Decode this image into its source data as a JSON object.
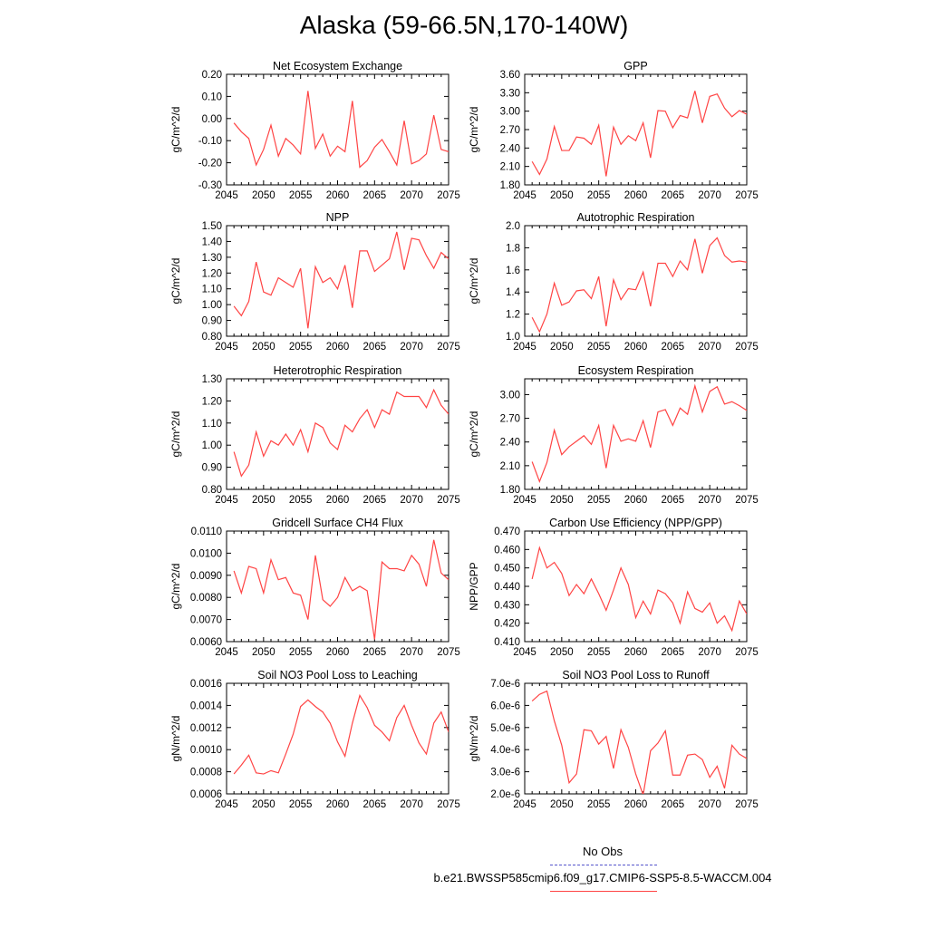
{
  "title": "Alaska (59-66.5N,170-140W)",
  "legend": {
    "obs_label": "No Obs",
    "obs_color": "#5555cc",
    "model_label": "b.e21.BWSSP585cmip6.f09_g17.CMIP6-SSP5-8.5-WACCM.004",
    "model_color": "#ff4444"
  },
  "chart_data": [
    {
      "type": "line",
      "title": "Net Ecosystem Exchange",
      "ylabel": "gC/m^2/d",
      "xlim": [
        2045,
        2075
      ],
      "ylim": [
        -0.3,
        0.2
      ],
      "xticks": [
        "2045",
        "2050",
        "2055",
        "2060",
        "2065",
        "2070",
        "2075"
      ],
      "yticks": [
        "-0.30",
        "-0.20",
        "-0.10",
        "0.00",
        "0.10",
        "0.20"
      ],
      "x": [
        2046,
        2047,
        2048,
        2049,
        2050,
        2051,
        2052,
        2053,
        2054,
        2055,
        2056,
        2057,
        2058,
        2059,
        2060,
        2061,
        2062,
        2063,
        2064,
        2065,
        2066,
        2067,
        2068,
        2069,
        2070,
        2071,
        2072,
        2073,
        2074,
        2075
      ],
      "values": [
        -0.02,
        -0.06,
        -0.09,
        -0.21,
        -0.14,
        -0.03,
        -0.17,
        -0.09,
        -0.12,
        -0.16,
        0.125,
        -0.135,
        -0.07,
        -0.17,
        -0.125,
        -0.15,
        0.08,
        -0.22,
        -0.19,
        -0.13,
        -0.095,
        -0.15,
        -0.21,
        -0.01,
        -0.205,
        -0.19,
        -0.16,
        0.015,
        -0.14,
        -0.15
      ]
    },
    {
      "type": "line",
      "title": "GPP",
      "ylabel": "gC/m^2/d",
      "xlim": [
        2045,
        2075
      ],
      "ylim": [
        1.8,
        3.6
      ],
      "xticks": [
        "2045",
        "2050",
        "2055",
        "2060",
        "2065",
        "2070",
        "2075"
      ],
      "yticks": [
        "1.80",
        "2.10",
        "2.40",
        "2.70",
        "3.00",
        "3.30",
        "3.60"
      ],
      "x": [
        2046,
        2047,
        2048,
        2049,
        2050,
        2051,
        2052,
        2053,
        2054,
        2055,
        2056,
        2057,
        2058,
        2059,
        2060,
        2061,
        2062,
        2063,
        2064,
        2065,
        2066,
        2067,
        2068,
        2069,
        2070,
        2071,
        2072,
        2073,
        2074,
        2075
      ],
      "values": [
        2.18,
        1.97,
        2.22,
        2.75,
        2.36,
        2.36,
        2.58,
        2.56,
        2.46,
        2.77,
        1.94,
        2.74,
        2.46,
        2.6,
        2.52,
        2.81,
        2.24,
        3.01,
        3.0,
        2.73,
        2.93,
        2.89,
        3.33,
        2.81,
        3.24,
        3.28,
        3.05,
        2.91,
        3.01,
        2.95
      ]
    },
    {
      "type": "line",
      "title": "NPP",
      "ylabel": "gC/m^2/d",
      "xlim": [
        2045,
        2075
      ],
      "ylim": [
        0.8,
        1.5
      ],
      "xticks": [
        "2045",
        "2050",
        "2055",
        "2060",
        "2065",
        "2070",
        "2075"
      ],
      "yticks": [
        "0.80",
        "0.90",
        "1.00",
        "1.10",
        "1.20",
        "1.30",
        "1.40",
        "1.50"
      ],
      "x": [
        2046,
        2047,
        2048,
        2049,
        2050,
        2051,
        2052,
        2053,
        2054,
        2055,
        2056,
        2057,
        2058,
        2059,
        2060,
        2061,
        2062,
        2063,
        2064,
        2065,
        2066,
        2067,
        2068,
        2069,
        2070,
        2071,
        2072,
        2073,
        2074,
        2075
      ],
      "values": [
        0.99,
        0.93,
        1.02,
        1.27,
        1.08,
        1.06,
        1.17,
        1.14,
        1.11,
        1.23,
        0.85,
        1.24,
        1.14,
        1.17,
        1.1,
        1.25,
        0.98,
        1.34,
        1.34,
        1.21,
        1.25,
        1.29,
        1.46,
        1.22,
        1.42,
        1.41,
        1.31,
        1.23,
        1.33,
        1.29
      ]
    },
    {
      "type": "line",
      "title": "Autotrophic Respiration",
      "ylabel": "gC/m^2/d",
      "xlim": [
        2045,
        2075
      ],
      "ylim": [
        1.0,
        2.0
      ],
      "xticks": [
        "2045",
        "2050",
        "2055",
        "2060",
        "2065",
        "2070",
        "2075"
      ],
      "yticks": [
        "1.0",
        "1.2",
        "1.4",
        "1.6",
        "1.8",
        "2.0"
      ],
      "x": [
        2046,
        2047,
        2048,
        2049,
        2050,
        2051,
        2052,
        2053,
        2054,
        2055,
        2056,
        2057,
        2058,
        2059,
        2060,
        2061,
        2062,
        2063,
        2064,
        2065,
        2066,
        2067,
        2068,
        2069,
        2070,
        2071,
        2072,
        2073,
        2074,
        2075
      ],
      "values": [
        1.17,
        1.04,
        1.2,
        1.48,
        1.28,
        1.31,
        1.41,
        1.42,
        1.34,
        1.54,
        1.09,
        1.51,
        1.33,
        1.43,
        1.42,
        1.58,
        1.27,
        1.66,
        1.66,
        1.54,
        1.68,
        1.6,
        1.88,
        1.57,
        1.82,
        1.89,
        1.73,
        1.67,
        1.68,
        1.67
      ]
    },
    {
      "type": "line",
      "title": "Heterotrophic Respiration",
      "ylabel": "gC/m^2/d",
      "xlim": [
        2045,
        2075
      ],
      "ylim": [
        0.8,
        1.3
      ],
      "xticks": [
        "2045",
        "2050",
        "2055",
        "2060",
        "2065",
        "2070",
        "2075"
      ],
      "yticks": [
        "0.80",
        "0.90",
        "1.00",
        "1.10",
        "1.20",
        "1.30"
      ],
      "x": [
        2046,
        2047,
        2048,
        2049,
        2050,
        2051,
        2052,
        2053,
        2054,
        2055,
        2056,
        2057,
        2058,
        2059,
        2060,
        2061,
        2062,
        2063,
        2064,
        2065,
        2066,
        2067,
        2068,
        2069,
        2070,
        2071,
        2072,
        2073,
        2074,
        2075
      ],
      "values": [
        0.97,
        0.86,
        0.91,
        1.06,
        0.95,
        1.02,
        1.0,
        1.05,
        1.0,
        1.07,
        0.97,
        1.1,
        1.08,
        1.01,
        0.98,
        1.09,
        1.06,
        1.12,
        1.16,
        1.08,
        1.16,
        1.14,
        1.24,
        1.22,
        1.22,
        1.22,
        1.17,
        1.25,
        1.18,
        1.14
      ]
    },
    {
      "type": "line",
      "title": "Ecosystem Respiration",
      "ylabel": "gC/m^2/d",
      "xlim": [
        2045,
        2075
      ],
      "ylim": [
        1.8,
        3.2
      ],
      "xticks": [
        "2045",
        "2050",
        "2055",
        "2060",
        "2065",
        "2070",
        "2075"
      ],
      "yticks": [
        "1.80",
        "2.10",
        "2.40",
        "2.70",
        "3.00"
      ],
      "x": [
        2046,
        2047,
        2048,
        2049,
        2050,
        2051,
        2052,
        2053,
        2054,
        2055,
        2056,
        2057,
        2058,
        2059,
        2060,
        2061,
        2062,
        2063,
        2064,
        2065,
        2066,
        2067,
        2068,
        2069,
        2070,
        2071,
        2072,
        2073,
        2074,
        2075
      ],
      "values": [
        2.15,
        1.9,
        2.14,
        2.55,
        2.24,
        2.34,
        2.41,
        2.48,
        2.37,
        2.61,
        2.07,
        2.61,
        2.41,
        2.44,
        2.41,
        2.67,
        2.33,
        2.78,
        2.81,
        2.61,
        2.83,
        2.75,
        3.11,
        2.78,
        3.04,
        3.1,
        2.88,
        2.91,
        2.86,
        2.8
      ]
    },
    {
      "type": "line",
      "title": "Gridcell Surface CH4 Flux",
      "ylabel": "gC/m^2/d",
      "xlim": [
        2045,
        2075
      ],
      "ylim": [
        0.006,
        0.011
      ],
      "xticks": [
        "2045",
        "2050",
        "2055",
        "2060",
        "2065",
        "2070",
        "2075"
      ],
      "yticks": [
        "0.0060",
        "0.0070",
        "0.0080",
        "0.0090",
        "0.0100",
        "0.0110"
      ],
      "x": [
        2046,
        2047,
        2048,
        2049,
        2050,
        2051,
        2052,
        2053,
        2054,
        2055,
        2056,
        2057,
        2058,
        2059,
        2060,
        2061,
        2062,
        2063,
        2064,
        2065,
        2066,
        2067,
        2068,
        2069,
        2070,
        2071,
        2072,
        2073,
        2074,
        2075
      ],
      "values": [
        0.0092,
        0.0082,
        0.0094,
        0.0093,
        0.0082,
        0.0097,
        0.0088,
        0.0089,
        0.0082,
        0.0081,
        0.007,
        0.0099,
        0.0079,
        0.0076,
        0.008,
        0.0089,
        0.0083,
        0.0085,
        0.0083,
        0.0061,
        0.0096,
        0.0093,
        0.0093,
        0.0092,
        0.0099,
        0.0095,
        0.0085,
        0.0106,
        0.0091,
        0.0088
      ]
    },
    {
      "type": "line",
      "title": "Carbon Use Efficiency (NPP/GPP)",
      "ylabel": "NPP/GPP",
      "xlim": [
        2045,
        2075
      ],
      "ylim": [
        0.41,
        0.47
      ],
      "xticks": [
        "2045",
        "2050",
        "2055",
        "2060",
        "2065",
        "2070",
        "2075"
      ],
      "yticks": [
        "0.410",
        "0.420",
        "0.430",
        "0.440",
        "0.450",
        "0.460",
        "0.470"
      ],
      "x": [
        2046,
        2047,
        2048,
        2049,
        2050,
        2051,
        2052,
        2053,
        2054,
        2055,
        2056,
        2057,
        2058,
        2059,
        2060,
        2061,
        2062,
        2063,
        2064,
        2065,
        2066,
        2067,
        2068,
        2069,
        2070,
        2071,
        2072,
        2073,
        2074,
        2075
      ],
      "values": [
        0.444,
        0.461,
        0.45,
        0.453,
        0.447,
        0.435,
        0.441,
        0.436,
        0.444,
        0.436,
        0.427,
        0.438,
        0.45,
        0.441,
        0.423,
        0.432,
        0.425,
        0.438,
        0.436,
        0.431,
        0.42,
        0.437,
        0.428,
        0.426,
        0.431,
        0.42,
        0.424,
        0.416,
        0.432,
        0.425
      ]
    },
    {
      "type": "line",
      "title": "Soil NO3 Pool Loss to Leaching",
      "ylabel": "gN/m^2/d",
      "xlim": [
        2045,
        2075
      ],
      "ylim": [
        0.0006,
        0.0016
      ],
      "xticks": [
        "2045",
        "2050",
        "2055",
        "2060",
        "2065",
        "2070",
        "2075"
      ],
      "yticks": [
        "0.0006",
        "0.0008",
        "0.0010",
        "0.0012",
        "0.0014",
        "0.0016"
      ],
      "x": [
        2046,
        2047,
        2048,
        2049,
        2050,
        2051,
        2052,
        2053,
        2054,
        2055,
        2056,
        2057,
        2058,
        2059,
        2060,
        2061,
        2062,
        2063,
        2064,
        2065,
        2066,
        2067,
        2068,
        2069,
        2070,
        2071,
        2072,
        2073,
        2074,
        2075
      ],
      "values": [
        0.00078,
        0.00086,
        0.00095,
        0.00079,
        0.00078,
        0.00081,
        0.00079,
        0.00096,
        0.00114,
        0.00139,
        0.00145,
        0.00139,
        0.00134,
        0.00124,
        0.00107,
        0.00094,
        0.00124,
        0.00149,
        0.00138,
        0.00122,
        0.00116,
        0.00108,
        0.00129,
        0.0014,
        0.00122,
        0.00106,
        0.00096,
        0.00124,
        0.00134,
        0.00116
      ]
    },
    {
      "type": "line",
      "title": "Soil NO3 Pool Loss to Runoff",
      "ylabel": "gN/m^2/d",
      "xlim": [
        2045,
        2075
      ],
      "ylim": [
        2e-06,
        7e-06
      ],
      "xticks": [
        "2045",
        "2050",
        "2055",
        "2060",
        "2065",
        "2070",
        "2075"
      ],
      "yticks": [
        "2.0e-6",
        "3.0e-6",
        "4.0e-6",
        "5.0e-6",
        "6.0e-6",
        "7.0e-6"
      ],
      "x": [
        2046,
        2047,
        2048,
        2049,
        2050,
        2051,
        2052,
        2053,
        2054,
        2055,
        2056,
        2057,
        2058,
        2059,
        2060,
        2061,
        2062,
        2063,
        2064,
        2065,
        2066,
        2067,
        2068,
        2069,
        2070,
        2071,
        2072,
        2073,
        2074,
        2075
      ],
      "values": [
        6.2e-06,
        6.5e-06,
        6.65e-06,
        5.3e-06,
        4.2e-06,
        2.5e-06,
        2.9e-06,
        4.9e-06,
        4.85e-06,
        4.25e-06,
        4.6e-06,
        3.15e-06,
        4.9e-06,
        4.1e-06,
        2.9e-06,
        1.95e-06,
        3.95e-06,
        4.3e-06,
        4.85e-06,
        2.85e-06,
        2.85e-06,
        3.75e-06,
        3.8e-06,
        3.55e-06,
        2.75e-06,
        3.25e-06,
        2.25e-06,
        4.2e-06,
        3.8e-06,
        3.6e-06
      ]
    }
  ]
}
